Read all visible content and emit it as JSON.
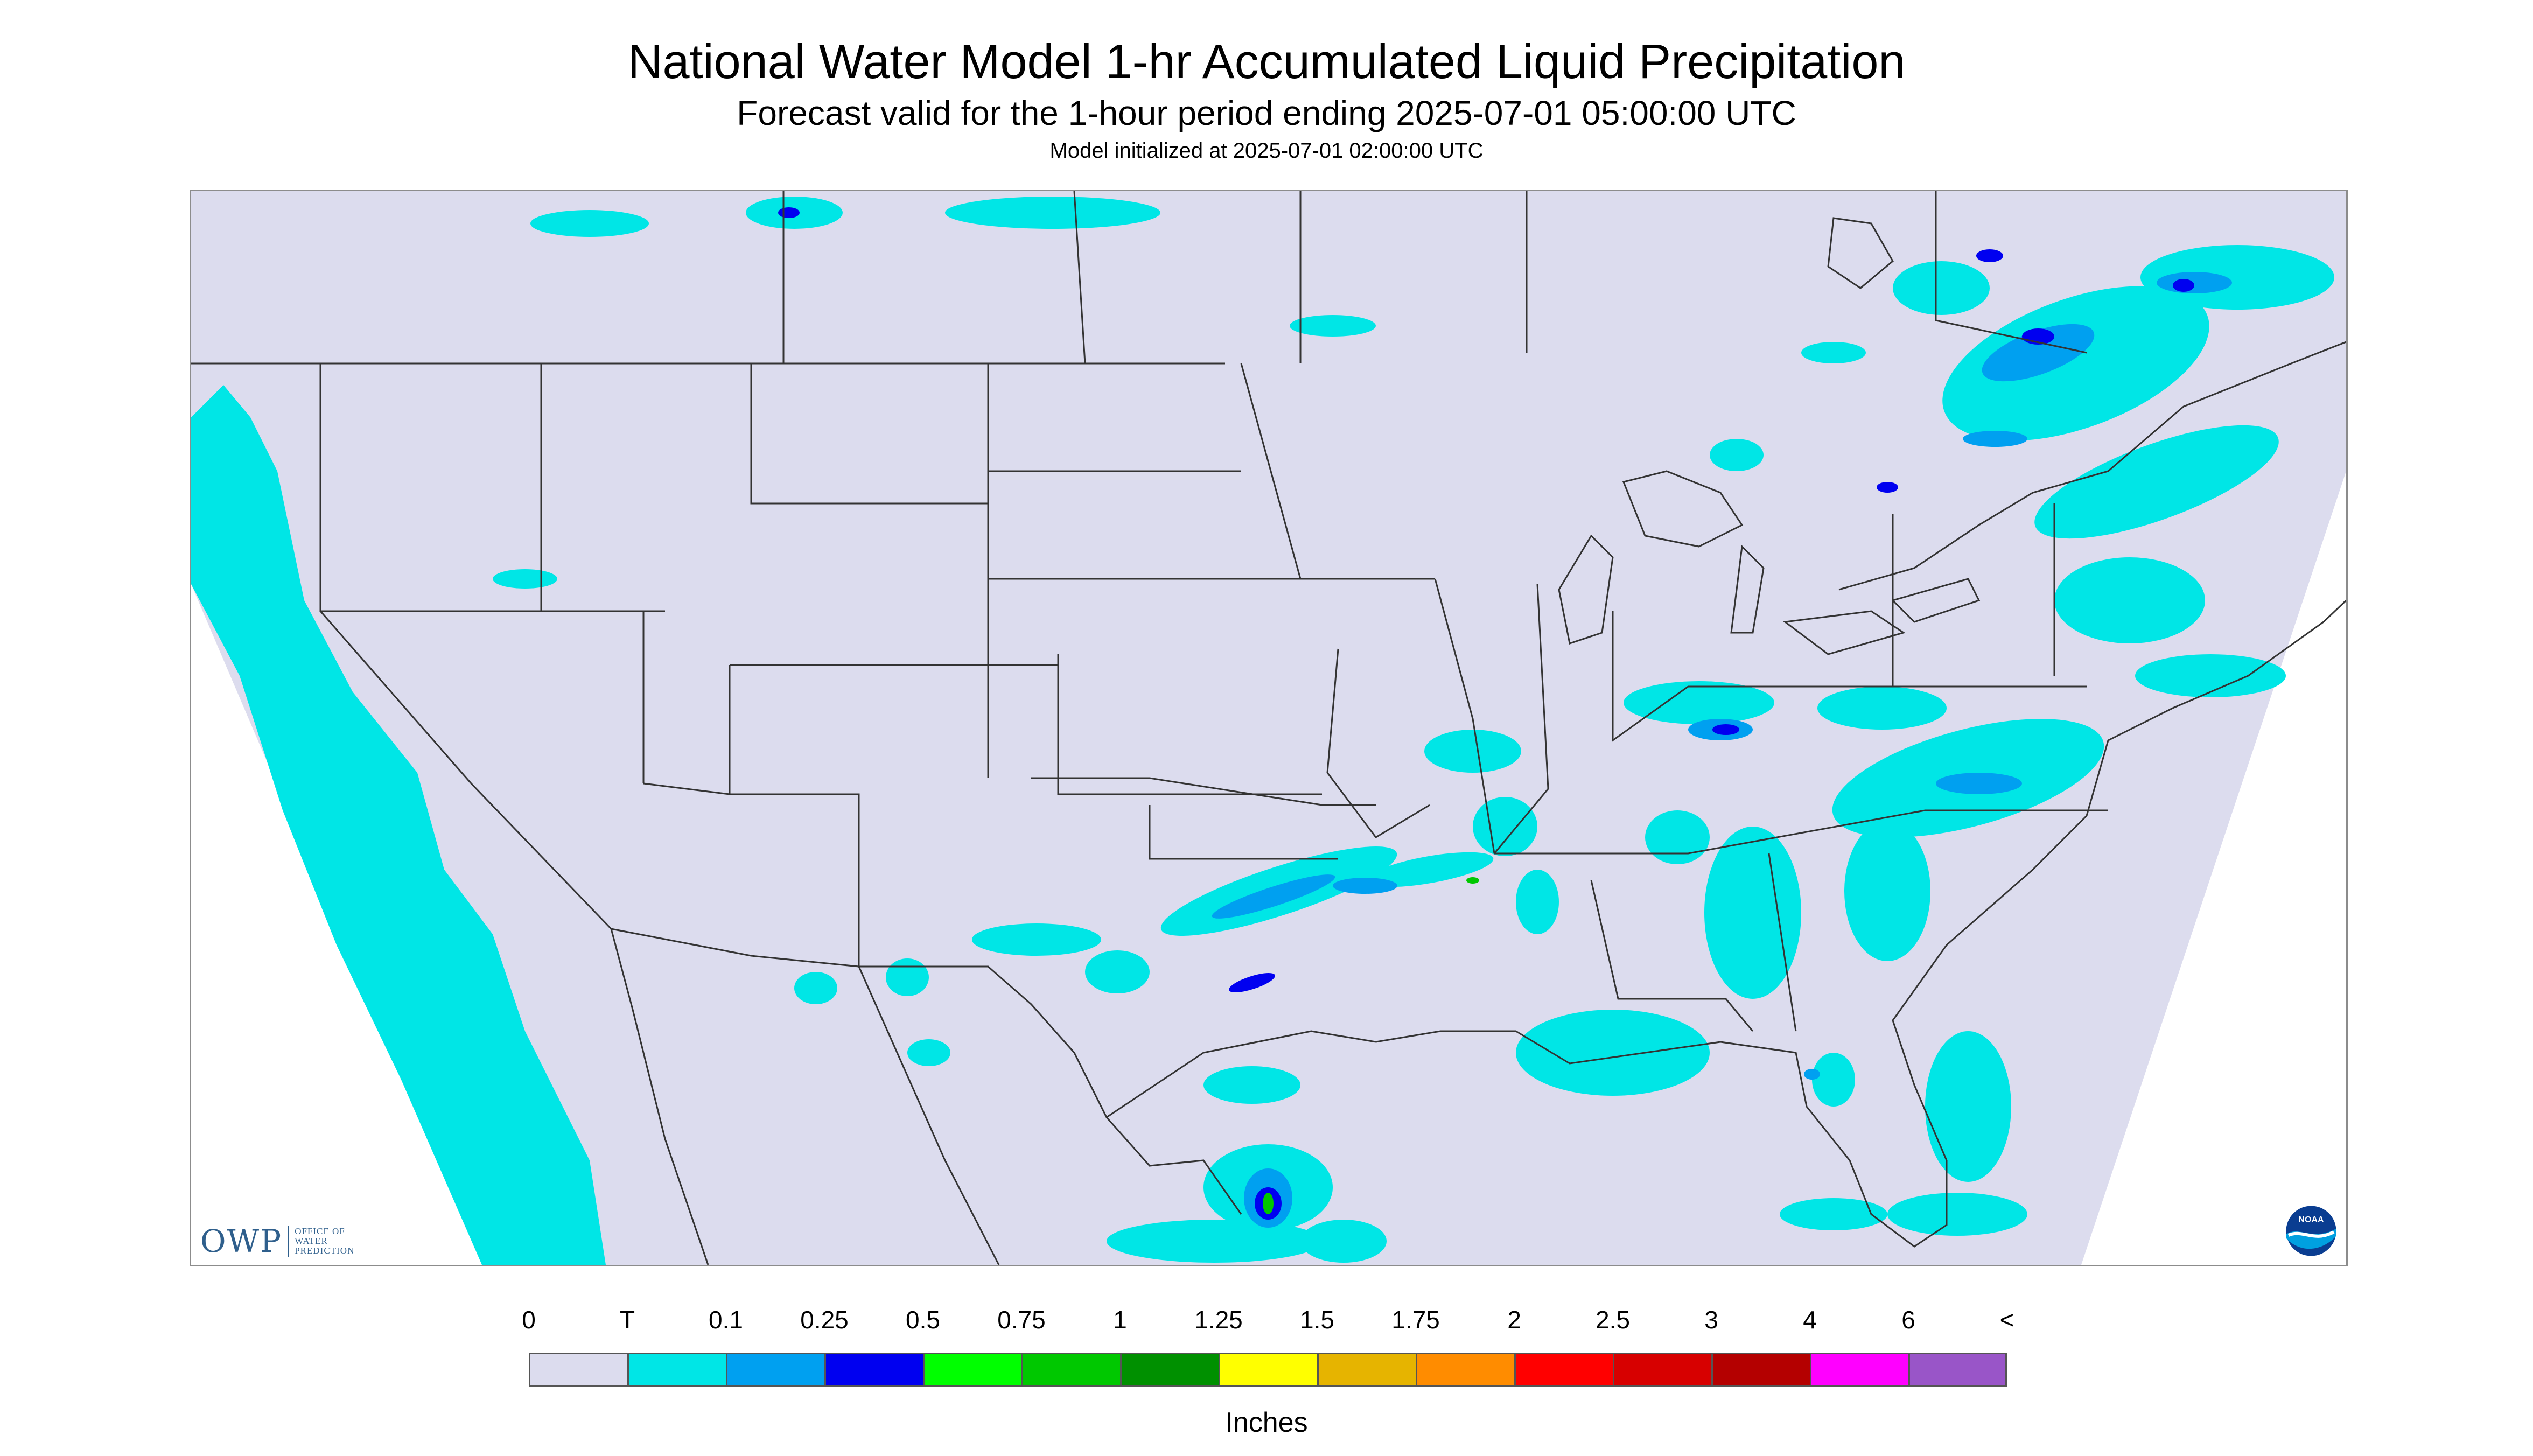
{
  "header": {
    "title": "National Water Model 1-hr Accumulated Liquid Precipitation",
    "subtitle": "Forecast valid for the 1-hour period ending 2025-07-01 05:00:00 UTC",
    "init_line": "Model initialized at 2025-07-01 02:00:00 UTC"
  },
  "logos": {
    "owp_mark": "OWP",
    "owp_text": [
      "OFFICE OF",
      "WATER",
      "PREDICTION"
    ],
    "noaa_text": "NOAA"
  },
  "colors": {
    "no_data": "#dcdcee",
    "coast_outline": "#333333",
    "trace": "#00e6e6",
    "p_0_1": "#00a0f0",
    "p_0_25": "#0000f0"
  },
  "legend": {
    "units": "Inches",
    "bins": [
      {
        "label": "0",
        "color": "#dcdcee"
      },
      {
        "label": "T",
        "color": "#00e6e6"
      },
      {
        "label": "0.1",
        "color": "#00a0f0"
      },
      {
        "label": "0.25",
        "color": "#0000f0"
      },
      {
        "label": "0.5",
        "color": "#00ff00"
      },
      {
        "label": "0.75",
        "color": "#00c800"
      },
      {
        "label": "1",
        "color": "#009000"
      },
      {
        "label": "1.25",
        "color": "#ffff00"
      },
      {
        "label": "1.5",
        "color": "#e6b400"
      },
      {
        "label": "1.75",
        "color": "#ff8c00"
      },
      {
        "label": "2",
        "color": "#ff0000"
      },
      {
        "label": "2.5",
        "color": "#d70000"
      },
      {
        "label": "3",
        "color": "#b40000"
      },
      {
        "label": "4",
        "color": "#ff00ff"
      },
      {
        "label": "6",
        "color": "#9955c8"
      }
    ],
    "overflow_label": "<"
  }
}
